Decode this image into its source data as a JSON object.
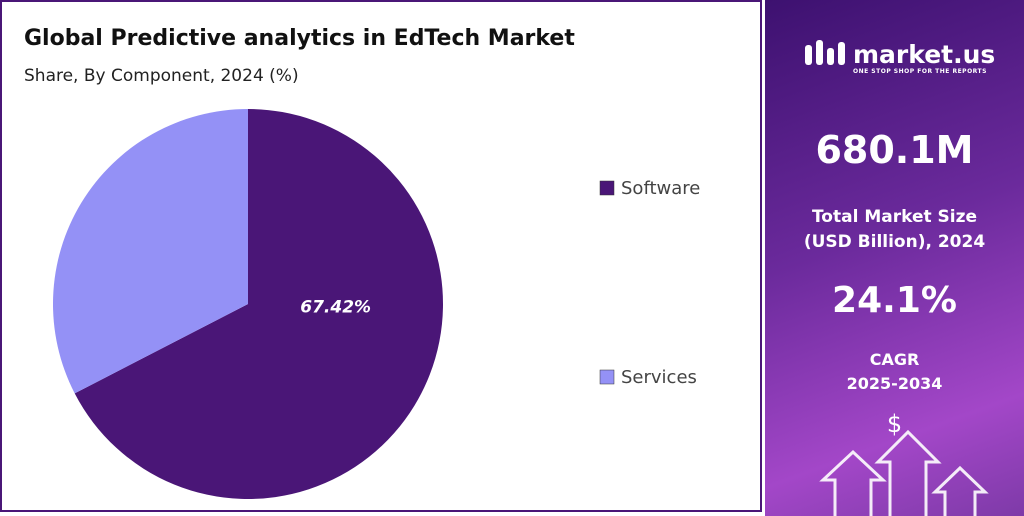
{
  "chart_data": {
    "type": "pie",
    "title": "Global Predictive analytics in EdTech Market",
    "subtitle": "Share, By Component, 2024 (%)",
    "categories": [
      "Software",
      "Services"
    ],
    "values": [
      67.42,
      32.58
    ],
    "value_labels": [
      "67.42%",
      null
    ],
    "colors": [
      "#4a1677",
      "#9491f6"
    ]
  },
  "panel": {
    "brand": "market.us",
    "tagline": "ONE STOP SHOP FOR THE REPORTS",
    "market_size": "680.1M",
    "market_size_label_1": "Total Market Size",
    "market_size_label_2": "(USD Billion), 2024",
    "cagr": "24.1%",
    "cagr_label": "CAGR",
    "cagr_period": "2025-2034",
    "currency_icon": "$"
  }
}
